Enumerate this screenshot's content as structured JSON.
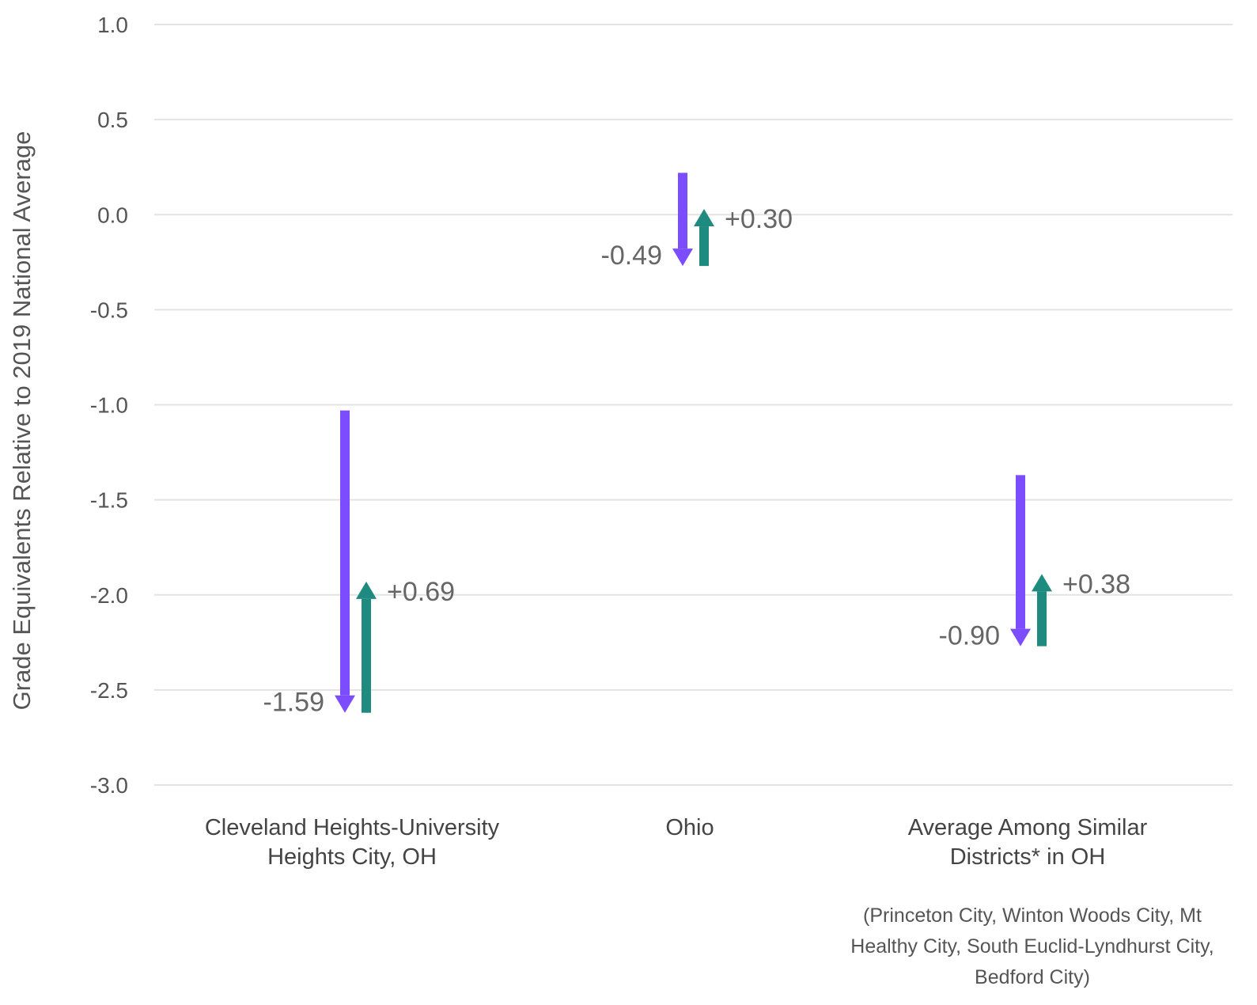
{
  "chart_data": {
    "type": "arrow",
    "ylabel": "Grade Equivalents Relative to 2019 National Average",
    "ylim": [
      -3.0,
      1.0
    ],
    "yticks": [
      "1.0",
      "0.5",
      "0.0",
      "-0.5",
      "-1.0",
      "-1.5",
      "-2.0",
      "-2.5",
      "-3.0"
    ],
    "grid": true,
    "colors": {
      "decline": "#7c4dff",
      "recovery": "#1f8a80"
    },
    "categories": [
      {
        "lines": [
          "Cleveland Heights-University",
          "Heights City, OH"
        ],
        "decline": {
          "start": -1.03,
          "end": -2.62,
          "label": "-1.59"
        },
        "recovery": {
          "start": -2.62,
          "end": -1.93,
          "label": "+0.69"
        }
      },
      {
        "lines": [
          "Ohio"
        ],
        "decline": {
          "start": 0.22,
          "end": -0.27,
          "label": "-0.49"
        },
        "recovery": {
          "start": -0.27,
          "end": 0.03,
          "label": "+0.30"
        }
      },
      {
        "lines": [
          "Average Among Similar",
          "Districts* in OH"
        ],
        "decline": {
          "start": -1.37,
          "end": -2.27,
          "label": "-0.90"
        },
        "recovery": {
          "start": -2.27,
          "end": -1.89,
          "label": "+0.38"
        }
      }
    ],
    "note": [
      "(Princeton City, Winton Woods City, Mt",
      "Healthy City, South Euclid-Lyndhurst City,",
      "Bedford City)"
    ]
  }
}
